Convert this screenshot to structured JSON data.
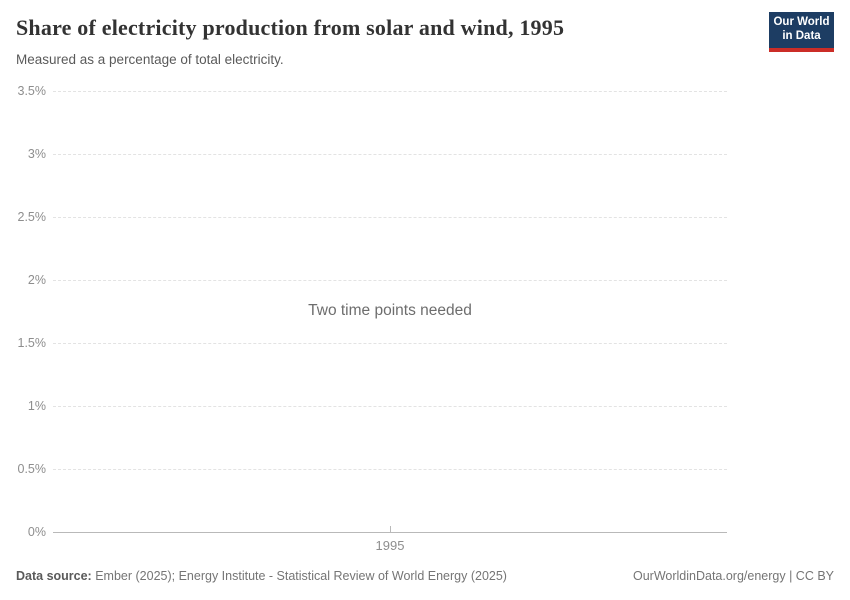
{
  "header": {
    "title": "Share of electricity production from solar and wind, 1995",
    "subtitle": "Measured as a percentage of total electricity.",
    "logo": {
      "line1": "Our World",
      "line2": "in Data"
    }
  },
  "chart_data": {
    "type": "line",
    "title": "Share of electricity production from solar and wind, 1995",
    "xlabel": "",
    "ylabel": "",
    "ylim": [
      0,
      3.5
    ],
    "yticks": [
      {
        "value": 0,
        "label": "0%"
      },
      {
        "value": 0.5,
        "label": "0.5%"
      },
      {
        "value": 1,
        "label": "1%"
      },
      {
        "value": 1.5,
        "label": "1.5%"
      },
      {
        "value": 2,
        "label": "2%"
      },
      {
        "value": 2.5,
        "label": "2.5%"
      },
      {
        "value": 3,
        "label": "3%"
      },
      {
        "value": 3.5,
        "label": "3.5%"
      }
    ],
    "xticks": [
      "1995"
    ],
    "series": [],
    "note": "Two time points needed",
    "grid": "horizontal dashed, solid baseline at 0%",
    "legend": "none"
  },
  "footer": {
    "source_label": "Data source:",
    "source_text": "Ember (2025); Energy Institute - Statistical Review of World Energy (2025)",
    "credit": "OurWorldinData.org/energy | CC BY"
  },
  "colors": {
    "logo_bg": "#1d3d63",
    "logo_stripe": "#cb2d27",
    "grid": "#e3e3e3",
    "axis": "#b9b9b9",
    "tick_text": "#8e8e8e",
    "title_text": "#333333",
    "subtitle_text": "#5a5a5a",
    "message_text": "#6d6d6d",
    "footer_text": "#757575"
  }
}
